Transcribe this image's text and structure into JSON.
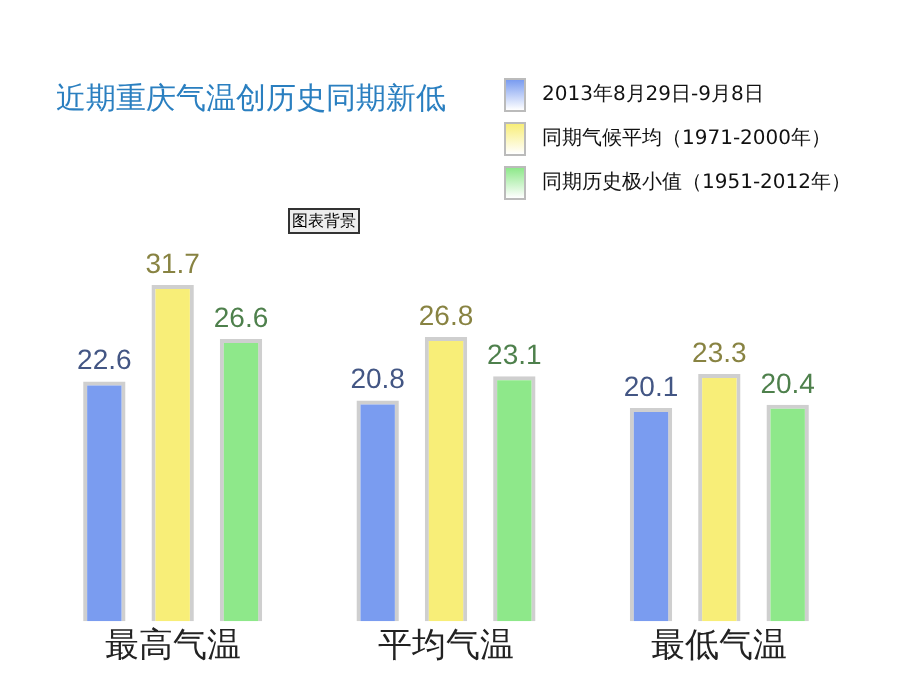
{
  "chart_data": {
    "type": "bar",
    "title": "近期重庆气温创历史同期新低",
    "categories": [
      "最高气温",
      "平均气温",
      "最低气温"
    ],
    "series": [
      {
        "name": "2013年8月29日-9月8日",
        "color": "#7a9cf0",
        "values": [
          22.6,
          20.8,
          20.1
        ]
      },
      {
        "name": "同期气候平均（1971-2000年）",
        "color": "#f8ee78",
        "values": [
          31.7,
          26.8,
          23.3
        ]
      },
      {
        "name": "同期历史极小值（1951-2012年）",
        "color": "#8ee88a",
        "values": [
          26.6,
          23.1,
          20.4
        ]
      }
    ],
    "tick_labels": "x",
    "grid": false,
    "legend": "top right",
    "data_labels": true,
    "annotations": [
      "图表背景"
    ]
  }
}
